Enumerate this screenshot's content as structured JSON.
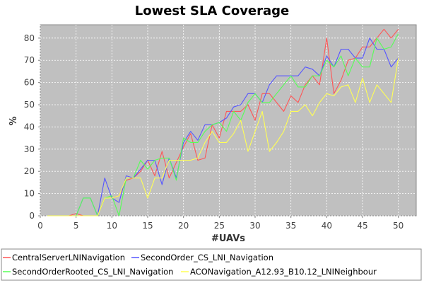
{
  "chart_data": {
    "type": "line",
    "title": "Lowest SLA Coverage",
    "xlabel": "#UAVs",
    "ylabel": "%",
    "xlim": [
      0,
      52.5
    ],
    "ylim": [
      0,
      86
    ],
    "xticks": [
      0,
      5,
      10,
      15,
      20,
      25,
      30,
      35,
      40,
      45,
      50
    ],
    "yticks": [
      0,
      10,
      20,
      30,
      40,
      50,
      60,
      70,
      80
    ],
    "grid": true,
    "legend_position": "bottom",
    "plot_background": "#c0c0c0",
    "x": [
      1,
      2,
      3,
      4,
      5,
      6,
      7,
      8,
      9,
      10,
      11,
      12,
      13,
      14,
      15,
      16,
      17,
      18,
      19,
      20,
      21,
      22,
      23,
      24,
      25,
      26,
      27,
      28,
      29,
      30,
      31,
      32,
      33,
      34,
      35,
      36,
      37,
      38,
      39,
      40,
      41,
      42,
      43,
      44,
      45,
      46,
      47,
      48,
      49,
      50
    ],
    "series": [
      {
        "name": "CentralServerLNINavigation",
        "color": "#ff5555",
        "values": [
          0,
          0,
          0,
          0,
          1,
          0,
          0,
          0,
          8,
          8,
          9,
          16,
          17,
          20,
          25,
          18,
          29,
          17,
          24,
          31,
          37,
          25,
          26,
          41,
          35,
          47,
          47,
          47,
          50,
          43,
          55,
          55,
          51,
          47,
          54,
          51,
          59,
          63,
          59,
          80,
          55,
          61,
          70,
          71,
          76,
          76,
          80,
          84,
          80,
          84
        ]
      },
      {
        "name": "SecondOrder_CS_LNI_Navigation",
        "color": "#5555ff",
        "values": [
          0,
          0,
          0,
          0,
          0,
          8,
          8,
          0,
          17,
          8,
          6,
          18,
          17,
          21,
          25,
          25,
          14,
          26,
          17,
          33,
          38,
          34,
          41,
          41,
          42,
          44,
          49,
          50,
          55,
          55,
          51,
          59,
          63,
          63,
          63,
          63,
          67,
          66,
          63,
          72,
          67,
          75,
          75,
          71,
          71,
          80,
          75,
          75,
          67,
          71
        ]
      },
      {
        "name": "SecondOrderRooted_CS_LNI_Navigation",
        "color": "#55ff55",
        "values": [
          0,
          0,
          0,
          0,
          0,
          8,
          8,
          0,
          8,
          9,
          0,
          17,
          17,
          25,
          21,
          25,
          26,
          26,
          16,
          35,
          33,
          33,
          38,
          41,
          42,
          38,
          47,
          43,
          51,
          55,
          51,
          51,
          55,
          59,
          63,
          58,
          58,
          63,
          63,
          70,
          67,
          72,
          63,
          71,
          67,
          67,
          80,
          75,
          76,
          82
        ]
      },
      {
        "name": "ACONavigation_A12.93_B10.12_LNINeighbour",
        "color": "#ffff55",
        "values": [
          0,
          0,
          0,
          0,
          0,
          0,
          0,
          0,
          8,
          8,
          9,
          17,
          17,
          17,
          8,
          17,
          17,
          25,
          25,
          25,
          25,
          26,
          33,
          38,
          33,
          33,
          37,
          43,
          29,
          38,
          47,
          29,
          33,
          38,
          47,
          47,
          50,
          45,
          51,
          55,
          54,
          58,
          59,
          51,
          62,
          51,
          59,
          55,
          51,
          71
        ]
      }
    ]
  }
}
